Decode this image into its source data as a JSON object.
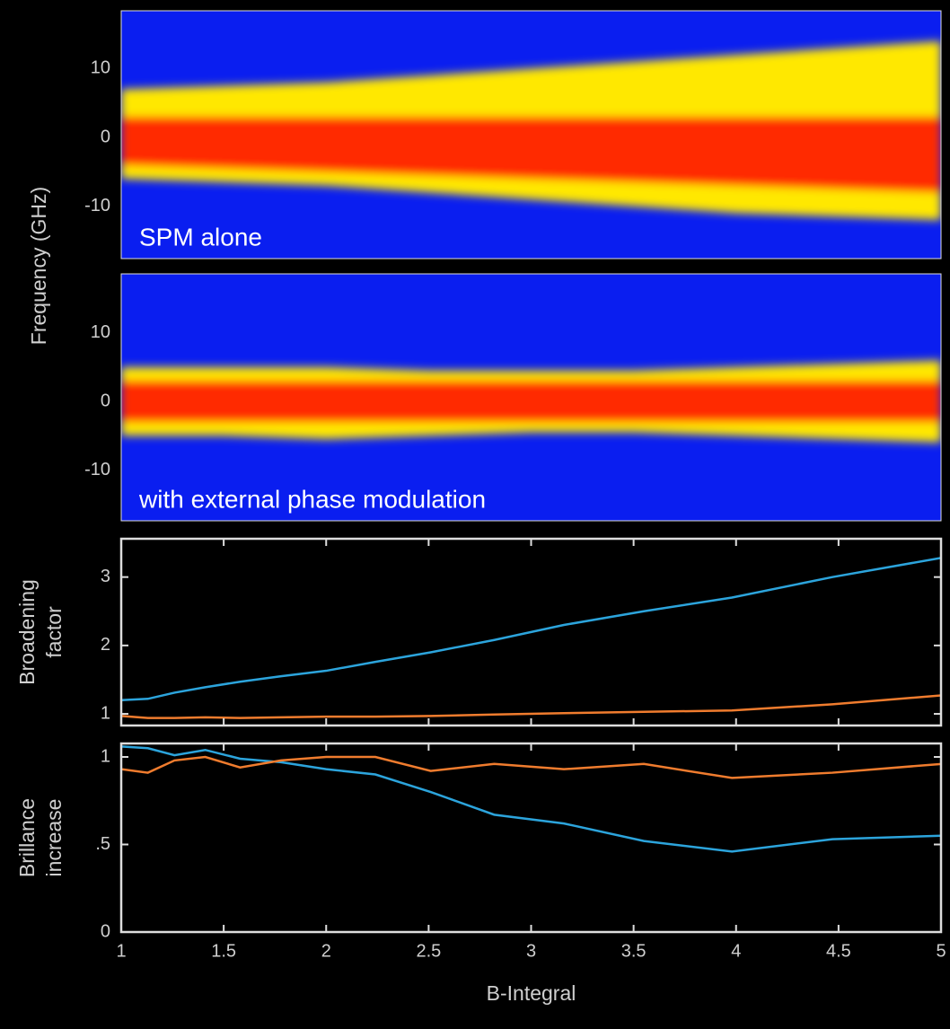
{
  "chart_data": [
    {
      "type": "spectrogram",
      "ylabel": "Frequency (GHz)",
      "annotation": "SPM alone",
      "xlim": [
        1,
        5
      ],
      "ylim": [
        -17.6,
        18.4
      ],
      "yticks": [
        -10,
        0,
        10
      ],
      "x": [
        1,
        1.5,
        2,
        2.5,
        3,
        3.5,
        4,
        4.5,
        5
      ],
      "outer_upper": [
        7,
        7.5,
        8,
        9,
        10,
        11,
        12,
        13,
        14
      ],
      "outer_lower": [
        -6,
        -6.5,
        -7,
        -8,
        -9,
        -10,
        -11,
        -11.5,
        -12
      ],
      "core_upper": [
        3,
        3,
        3,
        3,
        3,
        3,
        3,
        3,
        3
      ],
      "core_lower": [
        -4,
        -4.5,
        -5,
        -5.5,
        -6,
        -6.5,
        -7,
        -7.5,
        -8
      ]
    },
    {
      "type": "spectrogram",
      "annotation": "with external phase modulation",
      "xlim": [
        1,
        5
      ],
      "ylim": [
        -17.4,
        18.6
      ],
      "yticks": [
        -10,
        0,
        10
      ],
      "x": [
        1,
        1.5,
        2,
        2.5,
        3,
        3.5,
        4,
        4.5,
        5
      ],
      "outer_upper": [
        5,
        5,
        5,
        4.5,
        4.5,
        4.5,
        5,
        5.5,
        6
      ],
      "outer_lower": [
        -5,
        -5,
        -5.5,
        -5,
        -4.5,
        -4.5,
        -5,
        -5.5,
        -6
      ],
      "core_upper": [
        3,
        3,
        3,
        3,
        3,
        3,
        3,
        3,
        3
      ],
      "core_lower": [
        -3,
        -3,
        -3,
        -3,
        -3,
        -3,
        -3,
        -3,
        -3
      ]
    },
    {
      "type": "line",
      "ylabel": [
        "Broadening",
        "factor"
      ],
      "xlim": [
        1,
        5
      ],
      "ylim": [
        0.83,
        3.56
      ],
      "yticks": [
        1,
        2,
        3
      ],
      "xticks": [
        1,
        1.5,
        2,
        2.5,
        3,
        3.5,
        4,
        4.5,
        5
      ],
      "x": [
        1,
        1.13,
        1.26,
        1.41,
        1.58,
        1.78,
        2,
        2.24,
        2.51,
        2.82,
        3.16,
        3.55,
        3.98,
        4.47,
        5
      ],
      "series": [
        {
          "color": "#2ca4dc",
          "values": [
            1.2,
            1.22,
            1.31,
            1.39,
            1.47,
            1.55,
            1.63,
            1.76,
            1.9,
            2.08,
            2.3,
            2.5,
            2.7,
            3.0,
            3.28
          ]
        },
        {
          "color": "#f07c2e",
          "values": [
            0.97,
            0.94,
            0.94,
            0.95,
            0.94,
            0.95,
            0.96,
            0.96,
            0.97,
            0.99,
            1.01,
            1.03,
            1.05,
            1.14,
            1.27
          ]
        }
      ]
    },
    {
      "type": "line",
      "ylabel": [
        "Brillance",
        "increase"
      ],
      "xlabel": "B-Integral",
      "xlim": [
        1,
        5
      ],
      "ylim": [
        0,
        1.077
      ],
      "yticks": [
        0,
        {
          "value": 0.5,
          "label": ".5"
        },
        1
      ],
      "xticks": [
        1,
        1.5,
        2,
        2.5,
        3,
        3.5,
        4,
        4.5,
        5
      ],
      "xticklabels": true,
      "x": [
        1,
        1.13,
        1.26,
        1.41,
        1.58,
        1.78,
        2,
        2.24,
        2.51,
        2.82,
        3.16,
        3.55,
        3.98,
        4.47,
        5
      ],
      "series": [
        {
          "color": "#2ca4dc",
          "values": [
            1.06,
            1.05,
            1.01,
            1.04,
            0.99,
            0.97,
            0.93,
            0.9,
            0.8,
            0.67,
            0.62,
            0.52,
            0.46,
            0.53,
            0.55
          ]
        },
        {
          "color": "#f07c2e",
          "values": [
            0.93,
            0.91,
            0.98,
            1.0,
            0.94,
            0.98,
            1.0,
            1.0,
            0.92,
            0.96,
            0.93,
            0.96,
            0.88,
            0.91,
            0.96
          ]
        }
      ]
    }
  ]
}
